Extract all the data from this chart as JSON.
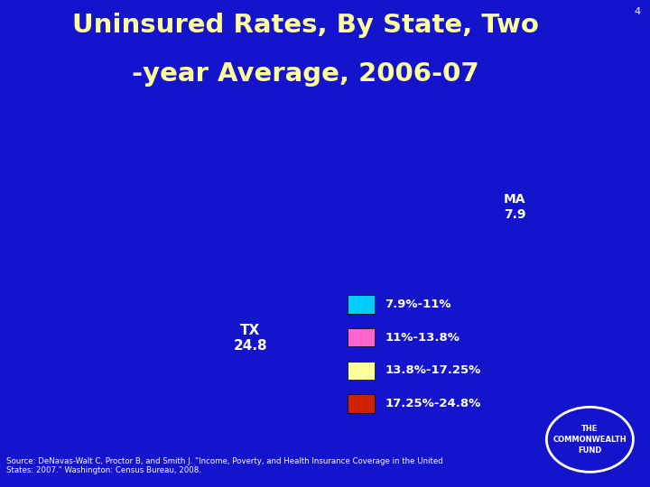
{
  "title_line1": "Uninsured Rates, By State, Two",
  "title_line2": "-year Average, 2006-07",
  "title_color": "#FFFF99",
  "background_color": "#1414CC",
  "legend_items": [
    {
      "label": "7.9%-11%",
      "color": "#00CCFF"
    },
    {
      "label": "11%-13.8%",
      "color": "#FF66CC"
    },
    {
      "label": "13.8%-17.25%",
      "color": "#FFFF99"
    },
    {
      "label": "17.25%-24.8%",
      "color": "#CC2200"
    }
  ],
  "source_text": "Source: DeNavas-Walt C, Proctor B, and Smith J. \"Income, Poverty, and Health Insurance Coverage in the United\nStates: 2007.\" Washington: Census Bureau, 2008.",
  "commonwealth_text": "THE\nCOMMONWEALTH\nFUND",
  "state_colors": {
    "Alabama": "#CC2200",
    "Alaska": "#CC2200",
    "Arizona": "#CC2200",
    "Arkansas": "#CC2200",
    "California": "#CC2200",
    "Colorado": "#FF66CC",
    "Connecticut": "#00CCFF",
    "Delaware": "#FF66CC",
    "Florida": "#CC2200",
    "Georgia": "#CC2200",
    "Hawaii": "#00CCFF",
    "Idaho": "#FFFF99",
    "Illinois": "#FF66CC",
    "Indiana": "#FF66CC",
    "Iowa": "#00CCFF",
    "Kansas": "#FF66CC",
    "Kentucky": "#FFFF99",
    "Louisiana": "#CC2200",
    "Maine": "#00CCFF",
    "Maryland": "#FF66CC",
    "Massachusetts": "#00CCFF",
    "Michigan": "#00CCFF",
    "Minnesota": "#00CCFF",
    "Mississippi": "#CC2200",
    "Missouri": "#FF66CC",
    "Montana": "#FFFF99",
    "Nebraska": "#00CCFF",
    "Nevada": "#CC2200",
    "New Hampshire": "#00CCFF",
    "New Jersey": "#FF66CC",
    "New Mexico": "#CC2200",
    "New York": "#FF66CC",
    "North Carolina": "#FF66CC",
    "North Dakota": "#00CCFF",
    "Ohio": "#00CCFF",
    "Oklahoma": "#CC2200",
    "Oregon": "#FF66CC",
    "Pennsylvania": "#FF66CC",
    "Rhode Island": "#FF66CC",
    "South Carolina": "#CC2200",
    "South Dakota": "#FFFF99",
    "Tennessee": "#FF66CC",
    "Texas": "#CC2200",
    "Utah": "#FFFF99",
    "Vermont": "#00CCFF",
    "Virginia": "#FF66CC",
    "Washington": "#FF66CC",
    "West Virginia": "#FF66CC",
    "Wisconsin": "#00CCFF",
    "Wyoming": "#FFFF99",
    "District of Columbia": "#00CCFF"
  }
}
